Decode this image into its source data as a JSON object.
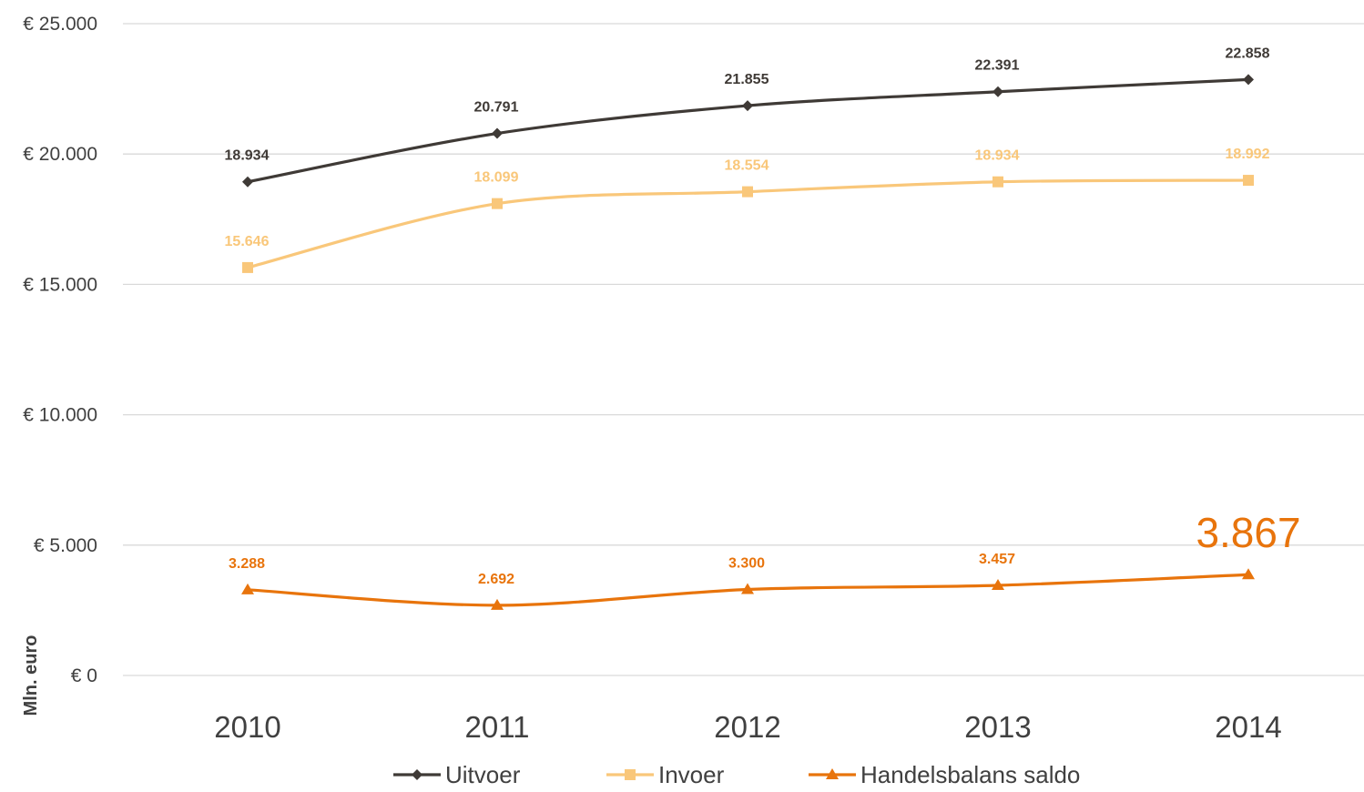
{
  "chart_data": {
    "type": "line",
    "title": "",
    "xlabel": "",
    "ylabel": "Mln. euro",
    "categories": [
      "2010",
      "2011",
      "2012",
      "2013",
      "2014"
    ],
    "ylim": [
      0,
      25000
    ],
    "yticks": [
      0,
      5000,
      10000,
      15000,
      20000,
      25000
    ],
    "ytick_labels": [
      "€ 0",
      "€ 5.000",
      "€ 10.000",
      "€ 15.000",
      "€ 20.000",
      "€ 25.000"
    ],
    "grid": true,
    "legend_position": "bottom",
    "series": [
      {
        "name": "Uitvoer",
        "color": "#3f3a36",
        "marker": "diamond",
        "values": [
          18934,
          20791,
          21855,
          22391,
          22858
        ],
        "labels": [
          "18.934",
          "20.791",
          "21.855",
          "22.391",
          "22.858"
        ]
      },
      {
        "name": "Invoer",
        "color": "#f9c77a",
        "marker": "square",
        "values": [
          15646,
          18099,
          18554,
          18934,
          18992
        ],
        "labels": [
          "15.646",
          "18.099",
          "18.554",
          "18.934",
          "18.992"
        ]
      },
      {
        "name": "Handelsbalans saldo",
        "color": "#e8740c",
        "marker": "triangle",
        "values": [
          3288,
          2692,
          3300,
          3457,
          3867
        ],
        "labels": [
          "3.288",
          "2.692",
          "3.300",
          "3.457",
          "3.867"
        ],
        "emphasized_label_index": 4
      }
    ]
  }
}
